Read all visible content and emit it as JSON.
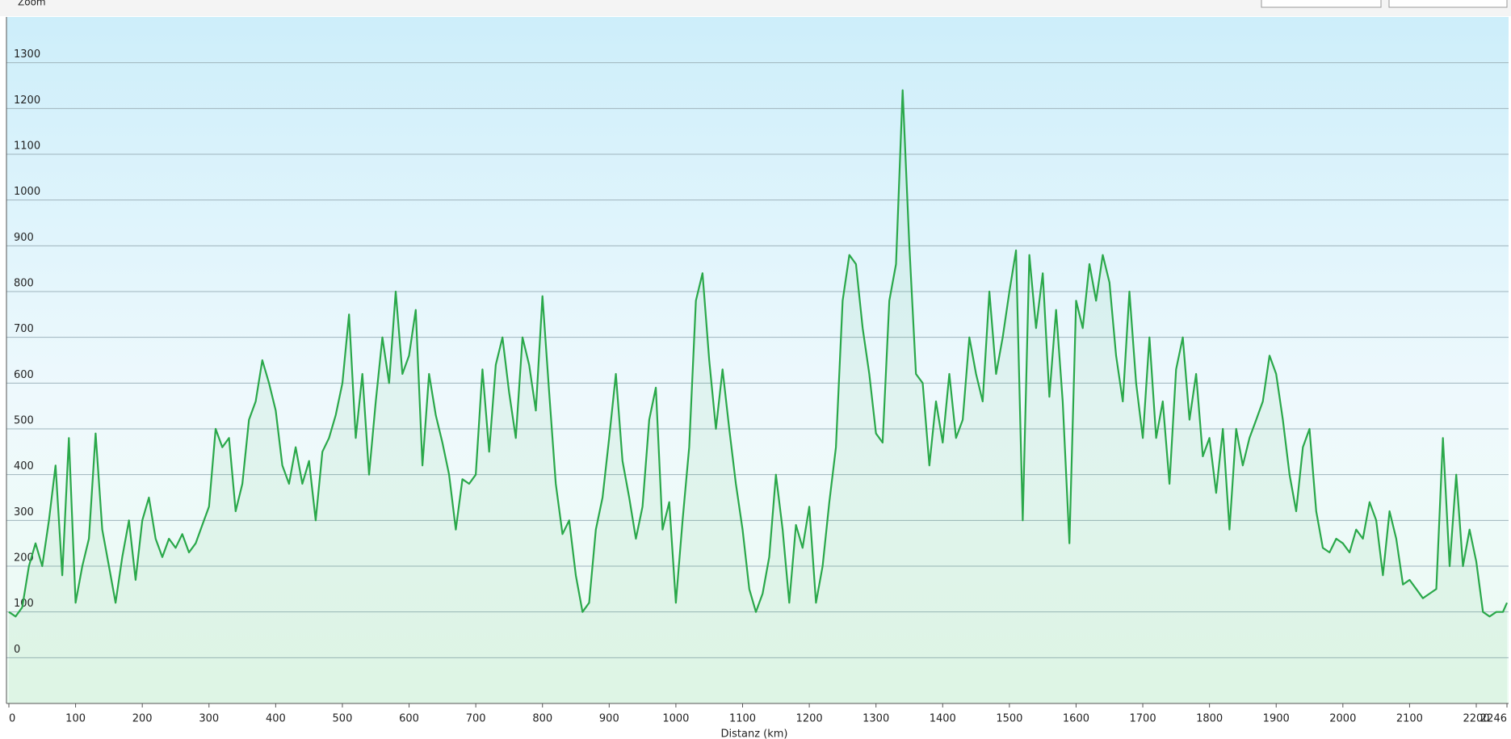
{
  "toolbar": {
    "zoom": "Zoom"
  },
  "chart_data": {
    "type": "line",
    "x_label": "Distanz (km)",
    "x": [
      0,
      10,
      20,
      30,
      40,
      50,
      60,
      70,
      80,
      90,
      100,
      110,
      120,
      130,
      140,
      150,
      160,
      170,
      180,
      190,
      200,
      210,
      220,
      230,
      240,
      250,
      260,
      270,
      280,
      290,
      300,
      310,
      320,
      330,
      340,
      350,
      360,
      370,
      380,
      390,
      400,
      410,
      420,
      430,
      440,
      450,
      460,
      470,
      480,
      490,
      500,
      510,
      520,
      530,
      540,
      550,
      560,
      570,
      580,
      590,
      600,
      610,
      620,
      630,
      640,
      650,
      660,
      670,
      680,
      690,
      700,
      710,
      720,
      730,
      740,
      750,
      760,
      770,
      780,
      790,
      800,
      810,
      820,
      830,
      840,
      850,
      860,
      870,
      880,
      890,
      900,
      910,
      920,
      930,
      940,
      950,
      960,
      970,
      980,
      990,
      1000,
      1010,
      1020,
      1030,
      1040,
      1050,
      1060,
      1070,
      1080,
      1090,
      1100,
      1110,
      1120,
      1130,
      1140,
      1150,
      1160,
      1170,
      1180,
      1190,
      1200,
      1210,
      1220,
      1230,
      1240,
      1250,
      1260,
      1270,
      1280,
      1290,
      1300,
      1310,
      1320,
      1330,
      1340,
      1350,
      1360,
      1370,
      1380,
      1390,
      1400,
      1410,
      1420,
      1430,
      1440,
      1450,
      1460,
      1470,
      1480,
      1490,
      1500,
      1510,
      1520,
      1530,
      1540,
      1550,
      1560,
      1570,
      1580,
      1590,
      1600,
      1610,
      1620,
      1630,
      1640,
      1650,
      1660,
      1670,
      1680,
      1690,
      1700,
      1710,
      1720,
      1730,
      1740,
      1750,
      1760,
      1770,
      1780,
      1790,
      1800,
      1810,
      1820,
      1830,
      1840,
      1850,
      1860,
      1870,
      1880,
      1890,
      1900,
      1910,
      1920,
      1930,
      1940,
      1950,
      1960,
      1970,
      1980,
      1990,
      2000,
      2010,
      2020,
      2030,
      2040,
      2050,
      2060,
      2070,
      2080,
      2090,
      2100,
      2110,
      2120,
      2130,
      2140,
      2150,
      2160,
      2170,
      2180,
      2190,
      2200,
      2210,
      2220,
      2230,
      2240,
      2246
    ],
    "series": [
      {
        "color": "#2aa84a",
        "values": [
          100,
          90,
          110,
          200,
          250,
          200,
          300,
          420,
          180,
          480,
          120,
          200,
          260,
          490,
          280,
          200,
          120,
          220,
          300,
          170,
          300,
          350,
          260,
          220,
          260,
          240,
          270,
          230,
          250,
          290,
          330,
          500,
          460,
          480,
          320,
          380,
          520,
          560,
          650,
          600,
          540,
          420,
          380,
          460,
          380,
          430,
          300,
          450,
          480,
          530,
          600,
          750,
          480,
          620,
          400,
          560,
          700,
          600,
          800,
          620,
          660,
          760,
          420,
          620,
          530,
          470,
          400,
          280,
          390,
          380,
          400,
          630,
          450,
          640,
          700,
          580,
          480,
          700,
          640,
          540,
          790,
          580,
          380,
          270,
          300,
          180,
          100,
          120,
          280,
          350,
          480,
          620,
          430,
          350,
          260,
          330,
          520,
          590,
          280,
          340,
          120,
          300,
          460,
          780,
          840,
          650,
          500,
          630,
          500,
          380,
          280,
          150,
          100,
          140,
          220,
          400,
          280,
          120,
          290,
          240,
          330,
          120,
          200,
          340,
          460,
          780,
          880,
          860,
          720,
          620,
          490,
          470,
          780,
          860,
          1240,
          900,
          620,
          600,
          420,
          560,
          470,
          620,
          480,
          520,
          700,
          620,
          560,
          800,
          620,
          700,
          800,
          890,
          300,
          880,
          720,
          840,
          570,
          760,
          560,
          250,
          780,
          720,
          860,
          780,
          880,
          820,
          660,
          560,
          800,
          600,
          480,
          700,
          480,
          560,
          380,
          630,
          700,
          520,
          620,
          440,
          480,
          360,
          500,
          280,
          500,
          420,
          480,
          520,
          560,
          660,
          620,
          520,
          400,
          320,
          460,
          500,
          320,
          240,
          230,
          260,
          250,
          230,
          280,
          260,
          340,
          300,
          180,
          320,
          260,
          160,
          170,
          150,
          130,
          140,
          150,
          480,
          200,
          400,
          200,
          280,
          210,
          100,
          90,
          100,
          100,
          120
        ]
      }
    ],
    "xlim": [
      0,
      2246
    ],
    "ylim": [
      -100,
      1400
    ],
    "xticks": [
      0,
      100,
      200,
      300,
      400,
      500,
      600,
      700,
      800,
      900,
      1000,
      1100,
      1200,
      1300,
      1400,
      1500,
      1600,
      1700,
      1800,
      1900,
      2000,
      2100,
      2200,
      2246
    ],
    "yticks": [
      0,
      100,
      200,
      300,
      400,
      500,
      600,
      700,
      800,
      900,
      1000,
      1100,
      1200,
      1300
    ],
    "grid": true
  }
}
